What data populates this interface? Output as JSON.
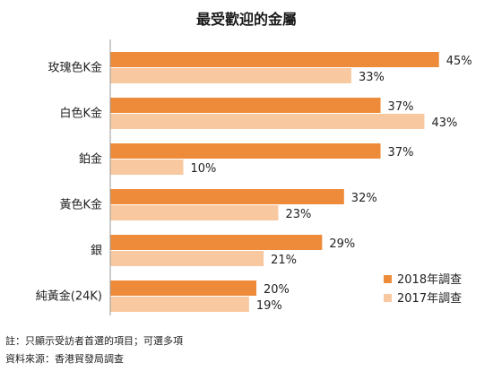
{
  "chart_data": {
    "type": "bar",
    "orientation": "horizontal",
    "title": "最受歡迎的金屬",
    "categories": [
      "玫瑰色K金",
      "白色K金",
      "鉑金",
      "黃色K金",
      "銀",
      "純黃金(24K)"
    ],
    "series": [
      {
        "name": "2018年調查",
        "values": [
          45,
          37,
          37,
          32,
          29,
          20
        ],
        "color": "#ED8B3A"
      },
      {
        "name": "2017年調查",
        "values": [
          33,
          43,
          10,
          23,
          21,
          19
        ],
        "color": "#F8C9A0"
      }
    ],
    "value_suffix": "%",
    "xlim": [
      0,
      50
    ],
    "grid": false,
    "legend_position": "bottom-right"
  },
  "notes": [
    "註：只顯示受訪者首選的項目；可選多項",
    "資料來源：香港貿發局調查"
  ]
}
